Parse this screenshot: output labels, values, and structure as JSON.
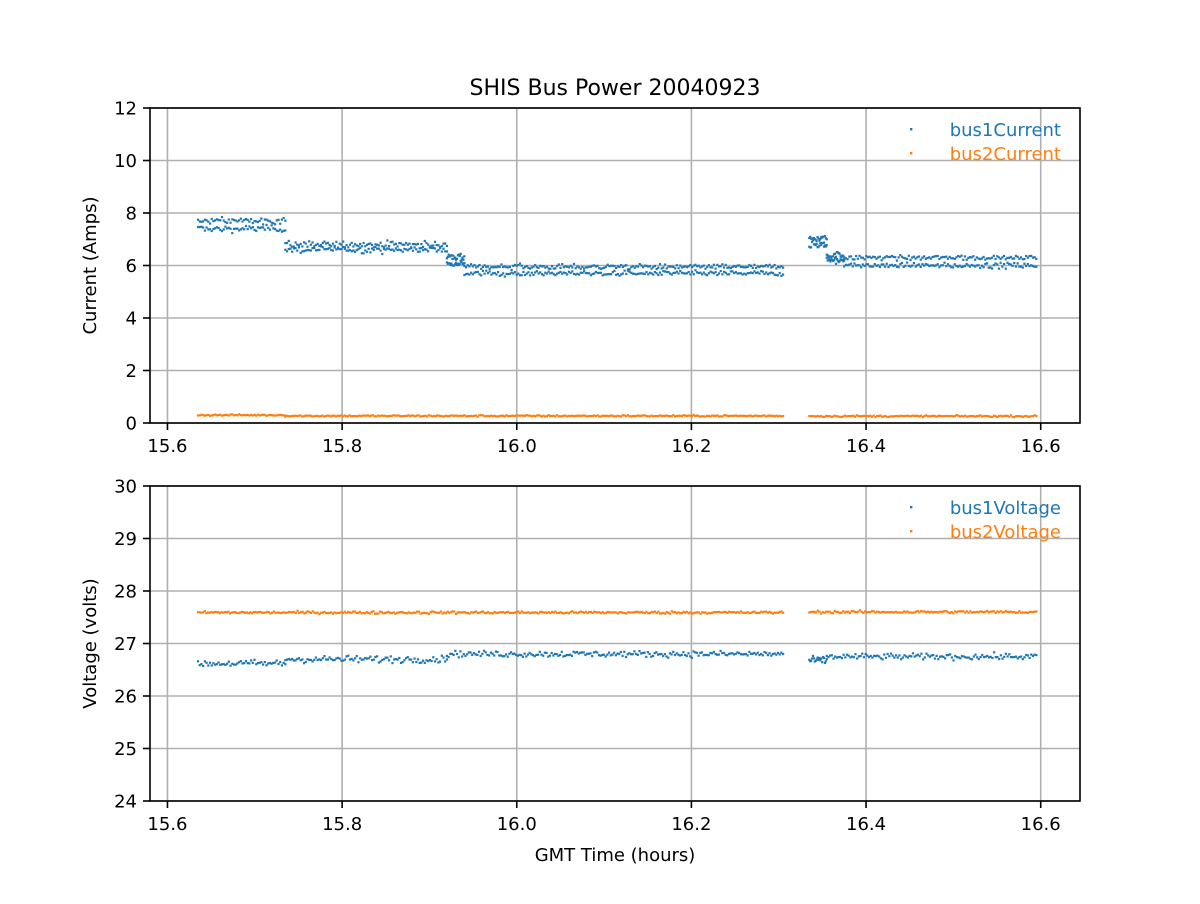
{
  "figure": {
    "title": "SHIS Bus Power 20040923"
  },
  "chart_data": [
    {
      "type": "scatter",
      "title": "SHIS Bus Power 20040923",
      "xlabel": "",
      "ylabel": "Current (Amps)",
      "xlim": [
        15.58,
        16.645
      ],
      "ylim": [
        0,
        12
      ],
      "xticks": [
        15.6,
        15.8,
        16.0,
        16.2,
        16.4,
        16.6
      ],
      "xtick_labels": [
        "15.6",
        "15.8",
        "16.0",
        "16.2",
        "16.4",
        "16.6"
      ],
      "yticks": [
        0,
        2,
        4,
        6,
        8,
        10,
        12
      ],
      "ytick_labels": [
        "0",
        "2",
        "4",
        "6",
        "8",
        "10",
        "12"
      ],
      "grid": true,
      "legend_position": "top-right",
      "series": [
        {
          "name": "bus1Current",
          "color": "#1f77b4",
          "bands": [
            {
              "x_range": [
                15.635,
                15.735
              ],
              "y": [
                7.4,
                7.7
              ],
              "spread": 0.13
            },
            {
              "x_range": [
                15.735,
                15.92
              ],
              "y": [
                6.6,
                6.8
              ],
              "spread": 0.13
            },
            {
              "x_range": [
                15.92,
                15.94
              ],
              "y": [
                6.1,
                6.3
              ],
              "spread": 0.12
            },
            {
              "x_range": [
                15.94,
                16.305
              ],
              "y": [
                5.7,
                5.95
              ],
              "spread": 0.1
            },
            {
              "x_range": [
                16.335,
                16.355
              ],
              "y": [
                6.8,
                7.0
              ],
              "spread": 0.14
            },
            {
              "x_range": [
                16.355,
                16.375
              ],
              "y": [
                6.2,
                6.4
              ],
              "spread": 0.12
            },
            {
              "x_range": [
                16.375,
                16.595
              ],
              "y": [
                6.0,
                6.3
              ],
              "spread": 0.1
            }
          ]
        },
        {
          "name": "bus2Current",
          "color": "#ff7f0e",
          "bands": [
            {
              "x_range": [
                15.635,
                15.735
              ],
              "y": [
                0.3
              ],
              "spread": 0.03
            },
            {
              "x_range": [
                15.735,
                16.305
              ],
              "y": [
                0.27
              ],
              "spread": 0.03
            },
            {
              "x_range": [
                16.335,
                16.595
              ],
              "y": [
                0.26
              ],
              "spread": 0.03
            }
          ]
        }
      ]
    },
    {
      "type": "scatter",
      "title": "",
      "xlabel": "GMT Time (hours)",
      "ylabel": "Voltage (volts)",
      "xlim": [
        15.58,
        16.645
      ],
      "ylim": [
        24,
        30
      ],
      "xticks": [
        15.6,
        15.8,
        16.0,
        16.2,
        16.4,
        16.6
      ],
      "xtick_labels": [
        "15.6",
        "15.8",
        "16.0",
        "16.2",
        "16.4",
        "16.6"
      ],
      "yticks": [
        24,
        25,
        26,
        27,
        28,
        29,
        30
      ],
      "ytick_labels": [
        "24",
        "25",
        "26",
        "27",
        "28",
        "29",
        "30"
      ],
      "grid": true,
      "legend_position": "top-right",
      "series": [
        {
          "name": "bus1Voltage",
          "color": "#1f77b4",
          "bands": [
            {
              "x_range": [
                15.635,
                15.735
              ],
              "y": [
                26.62
              ],
              "spread": 0.07
            },
            {
              "x_range": [
                15.735,
                15.92
              ],
              "y": [
                26.7
              ],
              "spread": 0.07
            },
            {
              "x_range": [
                15.92,
                16.305
              ],
              "y": [
                26.8
              ],
              "spread": 0.06
            },
            {
              "x_range": [
                16.335,
                16.355
              ],
              "y": [
                26.68
              ],
              "spread": 0.07
            },
            {
              "x_range": [
                16.355,
                16.595
              ],
              "y": [
                26.75
              ],
              "spread": 0.06
            }
          ]
        },
        {
          "name": "bus2Voltage",
          "color": "#ff7f0e",
          "bands": [
            {
              "x_range": [
                15.635,
                16.305
              ],
              "y": [
                27.59
              ],
              "spread": 0.025
            },
            {
              "x_range": [
                16.335,
                16.595
              ],
              "y": [
                27.6
              ],
              "spread": 0.025
            }
          ]
        }
      ]
    }
  ]
}
